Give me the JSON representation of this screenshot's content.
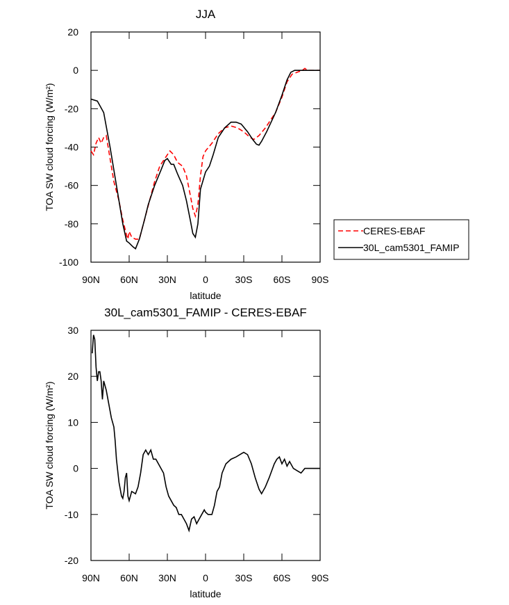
{
  "chart_data": [
    {
      "type": "line",
      "title": "JJA",
      "xlabel": "latitude",
      "ylabel": "TOA SW cloud forcing (W/m²)",
      "xlim": [
        90,
        -90
      ],
      "xticks": [
        {
          "value": 90,
          "label": "90N"
        },
        {
          "value": 60,
          "label": "60N"
        },
        {
          "value": 30,
          "label": "30N"
        },
        0,
        {
          "value": -30,
          "label": "30S"
        },
        {
          "value": -60,
          "label": "60S"
        },
        {
          "value": -90,
          "label": "90S"
        }
      ],
      "ylim": [
        -100,
        20
      ],
      "yticks": [
        -100,
        -80,
        -60,
        -40,
        -20,
        0,
        20
      ],
      "grid": false,
      "legend": "right",
      "series": [
        {
          "name": "CERES-EBAF",
          "color": "#ff0000",
          "dashed": true,
          "x": [
            90,
            88,
            86,
            84,
            82,
            80,
            78,
            76,
            72,
            68,
            65,
            62,
            61,
            60,
            58,
            55,
            52,
            48,
            44,
            40,
            36,
            32,
            28,
            25,
            22,
            18,
            15,
            12,
            10,
            8,
            6,
            4,
            2,
            0,
            -5,
            -10,
            -15,
            -20,
            -25,
            -30,
            -35,
            -38,
            -42,
            -47,
            -55,
            -60,
            -64,
            -68,
            -72,
            -76,
            -78,
            -80,
            -90
          ],
          "values": [
            -42,
            -44,
            -38,
            -35,
            -38,
            -35,
            -34,
            -42,
            -58,
            -68,
            -78,
            -86,
            -88,
            -84,
            -87,
            -88,
            -88,
            -78,
            -68,
            -58,
            -50,
            -46,
            -42,
            -44,
            -48,
            -50,
            -55,
            -65,
            -72,
            -76,
            -70,
            -55,
            -45,
            -42,
            -38,
            -33,
            -30,
            -29,
            -30,
            -32,
            -35,
            -36,
            -34,
            -30,
            -22,
            -14,
            -6,
            -2,
            -1,
            0,
            1,
            0,
            0
          ]
        },
        {
          "name": "30L_cam5301_FAMIP",
          "color": "#000000",
          "dashed": false,
          "x": [
            90,
            85,
            80,
            75,
            70,
            65,
            62,
            60,
            57,
            55,
            52,
            48,
            45,
            40,
            35,
            32,
            30,
            27,
            25,
            22,
            18,
            15,
            12,
            10,
            8,
            6,
            4,
            0,
            -3,
            -6,
            -10,
            -15,
            -20,
            -24,
            -28,
            -33,
            -37,
            -40,
            -42,
            -44,
            -48,
            -55,
            -60,
            -64,
            -67,
            -70,
            -75,
            -80,
            -90
          ],
          "values": [
            -15,
            -16,
            -22,
            -40,
            -60,
            -80,
            -89,
            -90,
            -92,
            -93,
            -88,
            -78,
            -70,
            -60,
            -52,
            -47,
            -46,
            -49,
            -49,
            -54,
            -60,
            -68,
            -78,
            -85,
            -87,
            -80,
            -62,
            -53,
            -50,
            -44,
            -35,
            -30,
            -27,
            -27,
            -28,
            -32,
            -36,
            -38.5,
            -39,
            -37,
            -32,
            -22,
            -13,
            -5,
            -1,
            0,
            0,
            0,
            0
          ]
        }
      ]
    },
    {
      "type": "line",
      "title": "30L_cam5301_FAMIP - CERES-EBAF",
      "xlabel": "latitude",
      "ylabel": "TOA SW cloud forcing (W/m²)",
      "xlim": [
        90,
        -90
      ],
      "xticks": [
        {
          "value": 90,
          "label": "90N"
        },
        {
          "value": 60,
          "label": "60N"
        },
        {
          "value": 30,
          "label": "30N"
        },
        0,
        {
          "value": -30,
          "label": "30S"
        },
        {
          "value": -60,
          "label": "60S"
        },
        {
          "value": -90,
          "label": "90S"
        }
      ],
      "ylim": [
        -20,
        30
      ],
      "yticks": [
        -20,
        -10,
        0,
        10,
        20,
        30
      ],
      "grid": false,
      "series": [
        {
          "color": "#000000",
          "dashed": false,
          "x": [
            89,
            88,
            87,
            86,
            85,
            84,
            83,
            82,
            81,
            80,
            78,
            76,
            74,
            72,
            71,
            70,
            68,
            66,
            65,
            64,
            63,
            62,
            61,
            60,
            58,
            55,
            53,
            51,
            49,
            47,
            45,
            43,
            41,
            39,
            37,
            35,
            33,
            31,
            29,
            27,
            25,
            23,
            21,
            19,
            17,
            15,
            13,
            11,
            9,
            7,
            5,
            3,
            1,
            0,
            -2,
            -5,
            -7,
            -9,
            -11,
            -13,
            -16,
            -20,
            -24,
            -27,
            -30,
            -33,
            -36,
            -39,
            -42,
            -44,
            -47,
            -50,
            -54,
            -56,
            -58,
            -60,
            -62,
            -64,
            -66,
            -69,
            -72,
            -75,
            -78,
            -80,
            -85,
            -90
          ],
          "values": [
            25,
            29,
            28,
            22,
            19,
            21,
            21,
            19,
            15,
            19,
            17,
            14,
            11,
            9,
            6,
            2,
            -3,
            -6,
            -6.5,
            -5,
            -2,
            -1,
            -6,
            -7,
            -5,
            -5.5,
            -4,
            -1,
            3,
            4,
            3,
            4,
            2,
            2,
            1,
            0,
            -1,
            -4,
            -6,
            -7,
            -8,
            -8.5,
            -10,
            -10,
            -11,
            -12,
            -13.5,
            -11,
            -10.5,
            -12,
            -11,
            -10,
            -9,
            -9.5,
            -10,
            -10,
            -8,
            -5,
            -4,
            -1,
            1,
            2,
            2.5,
            3,
            3.5,
            3,
            1,
            -2,
            -4.5,
            -5.5,
            -4,
            -2,
            1,
            2,
            2.5,
            1,
            2,
            0.5,
            1.5,
            0,
            -0.5,
            -1,
            0,
            0,
            0,
            0
          ]
        }
      ]
    }
  ]
}
